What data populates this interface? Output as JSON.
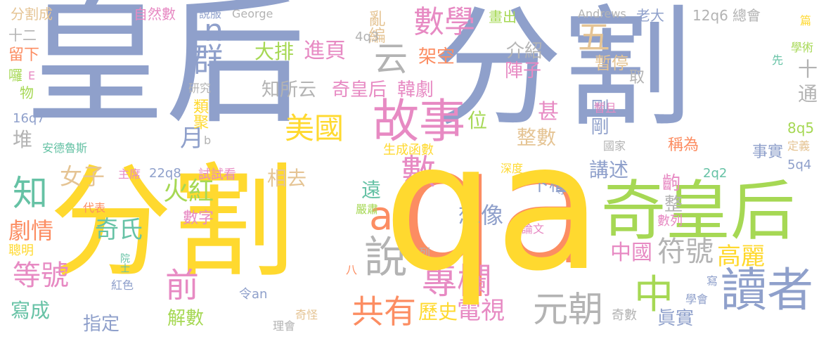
{
  "palette": {
    "blue": "#8FA0CB",
    "yellow": "#FFD92F",
    "orange": "#FC8D62",
    "green": "#A6D854",
    "pink": "#E78AC3",
    "teal": "#66C2A5",
    "tan": "#E5C494",
    "gray": "#B3B3B3",
    "background": "#FFFFFF"
  },
  "words": [
    {
      "text": "皇后",
      "color": "#8FA0CB"
    },
    {
      "text": "分割",
      "color": "#8FA0CB"
    },
    {
      "text": "分割",
      "color": "#FFD92F"
    },
    {
      "text": "qa",
      "color": "#FFD92F"
    },
    {
      "text": "qa",
      "color": "#FC8D62"
    },
    {
      "text": "奇皇后",
      "color": "#A6D854"
    },
    {
      "text": "故事",
      "color": "#E78AC3"
    },
    {
      "text": "讀者",
      "color": "#8FA0CB"
    },
    {
      "text": "數學",
      "color": "#E78AC3"
    },
    {
      "text": "專欄",
      "color": "#E78AC3"
    },
    {
      "text": "共有",
      "color": "#FC8D62"
    },
    {
      "text": "說",
      "color": "#B3B3B3"
    },
    {
      "text": "元朝",
      "color": "#B3B3B3"
    },
    {
      "text": "中",
      "color": "#A6D854"
    },
    {
      "text": "數",
      "color": "#E78AC3"
    },
    {
      "text": "ab",
      "color": "#FC8D62"
    },
    {
      "text": "美國",
      "color": "#FFD92F"
    },
    {
      "text": "云",
      "color": "#B3B3B3"
    },
    {
      "text": "群",
      "color": "#8FA0CB"
    },
    {
      "text": "知",
      "color": "#66C2A5"
    },
    {
      "text": "n",
      "color": "#8FA0CB"
    },
    {
      "text": "五",
      "color": "#E5C494"
    },
    {
      "text": "等號",
      "color": "#E78AC3"
    },
    {
      "text": "前",
      "color": "#E78AC3"
    },
    {
      "text": "符號",
      "color": "#B3B3B3"
    },
    {
      "text": "高麗",
      "color": "#FFD92F"
    },
    {
      "text": "電視",
      "color": "#E78AC3"
    },
    {
      "text": "歷史",
      "color": "#FFD92F"
    },
    {
      "text": "想像",
      "color": "#8FA0CB"
    },
    {
      "text": "中國",
      "color": "#E78AC3"
    },
    {
      "text": "奇氏",
      "color": "#66C2A5"
    },
    {
      "text": "火紅",
      "color": "#A6D854"
    },
    {
      "text": "女子",
      "color": "#E5C494"
    },
    {
      "text": "劇情",
      "color": "#FC8D62"
    },
    {
      "text": "寫成",
      "color": "#66C2A5"
    },
    {
      "text": "指定",
      "color": "#8FA0CB"
    },
    {
      "text": "解數",
      "color": "#A6D854"
    },
    {
      "text": "眞實",
      "color": "#8FA0CB"
    },
    {
      "text": "位",
      "color": "#A6D854"
    },
    {
      "text": "甚",
      "color": "#E78AC3"
    },
    {
      "text": "整數",
      "color": "#E5C494"
    },
    {
      "text": "剛剛",
      "color": "#8FA0CB"
    },
    {
      "text": "講述",
      "color": "#8FA0CB"
    },
    {
      "text": "下檔",
      "color": "#8FA0CB"
    },
    {
      "text": "相去",
      "color": "#E5C494"
    },
    {
      "text": "遠",
      "color": "#66C2A5"
    },
    {
      "text": "月",
      "color": "#8FA0CB"
    },
    {
      "text": "類聚",
      "color": "#FFD92F"
    },
    {
      "text": "堆",
      "color": "#B3B3B3"
    },
    {
      "text": "大排",
      "color": "#A6D854"
    },
    {
      "text": "進頁",
      "color": "#E78AC3"
    },
    {
      "text": "知所云",
      "color": "#B3B3B3"
    },
    {
      "text": "奇皇后",
      "color": "#E78AC3"
    },
    {
      "text": "韓劇",
      "color": "#E78AC3"
    },
    {
      "text": "架空",
      "color": "#FC8D62"
    },
    {
      "text": "陣子",
      "color": "#E78AC3"
    },
    {
      "text": "介紹",
      "color": "#B3B3B3"
    },
    {
      "text": "亂編",
      "color": "#E5C494"
    },
    {
      "text": "十",
      "color": "#B3B3B3"
    },
    {
      "text": "通",
      "color": "#B3B3B3"
    },
    {
      "text": "暫停",
      "color": "#E5C494"
    },
    {
      "text": "取",
      "color": "#B3B3B3"
    },
    {
      "text": "稱為",
      "color": "#FC8D62"
    },
    {
      "text": "事實",
      "color": "#8FA0CB"
    },
    {
      "text": "齣",
      "color": "#E78AC3"
    },
    {
      "text": "整",
      "color": "#B3B3B3"
    },
    {
      "text": "數字",
      "color": "#E78AC3"
    },
    {
      "text": "分割成",
      "color": "#E5C494"
    },
    {
      "text": "十二",
      "color": "#B3B3B3"
    },
    {
      "text": "留下",
      "color": "#FC8D62"
    },
    {
      "text": "自然數",
      "color": "#E78AC3"
    },
    {
      "text": "說服",
      "color": "#8FA0CB"
    },
    {
      "text": "George",
      "color": "#B3B3B3"
    },
    {
      "text": "Andrews",
      "color": "#B3B3B3"
    },
    {
      "text": "老大",
      "color": "#8FA0CB"
    },
    {
      "text": "12q6",
      "color": "#B3B3B3"
    },
    {
      "text": "總會",
      "color": "#B3B3B3"
    },
    {
      "text": "畫出",
      "color": "#A6D854"
    },
    {
      "text": "4q3",
      "color": "#B3B3B3"
    },
    {
      "text": "篇",
      "color": "#FFD92F"
    },
    {
      "text": "學術",
      "color": "#A6D854"
    },
    {
      "text": "先",
      "color": "#66C2A5"
    },
    {
      "text": "囉",
      "color": "#A6D854"
    },
    {
      "text": "E",
      "color": "#E78AC3"
    },
    {
      "text": "物",
      "color": "#A6D854"
    },
    {
      "text": "研究",
      "color": "#B3B3B3"
    },
    {
      "text": "16q7",
      "color": "#8FA0CB"
    },
    {
      "text": "b",
      "color": "#B3B3B3"
    },
    {
      "text": "安德魯斯",
      "color": "#66C2A5"
    },
    {
      "text": "生成函數",
      "color": "#FFD92F"
    },
    {
      "text": "暫且",
      "color": "#E78AC3"
    },
    {
      "text": "國家",
      "color": "#B3B3B3"
    },
    {
      "text": "8q5",
      "color": "#A6D854"
    },
    {
      "text": "定義",
      "color": "#E5C494"
    },
    {
      "text": "5q4",
      "color": "#8FA0CB"
    },
    {
      "text": "主席",
      "color": "#E78AC3"
    },
    {
      "text": "22q8",
      "color": "#8FA0CB"
    },
    {
      "text": "試試看",
      "color": "#E78AC3"
    },
    {
      "text": "深度",
      "color": "#FFD92F"
    },
    {
      "text": "2q2",
      "color": "#66C2A5"
    },
    {
      "text": "專家",
      "color": "#8FA0CB"
    },
    {
      "text": "代表",
      "color": "#FC8D62"
    },
    {
      "text": "嚴肅",
      "color": "#A6D854"
    },
    {
      "text": "聰明",
      "color": "#FFD92F"
    },
    {
      "text": "院士",
      "color": "#66C2A5"
    },
    {
      "text": "紅色",
      "color": "#8FA0CB"
    },
    {
      "text": "列",
      "color": "#B3B3B3"
    },
    {
      "text": "八",
      "color": "#FC8D62"
    },
    {
      "text": "令an",
      "color": "#8FA0CB"
    },
    {
      "text": "奇怪",
      "color": "#E5C494"
    },
    {
      "text": "理會",
      "color": "#B3B3B3"
    },
    {
      "text": "論文",
      "color": "#E78AC3"
    },
    {
      "text": "數列",
      "color": "#E78AC3"
    },
    {
      "text": "寫",
      "color": "#8FA0CB"
    },
    {
      "text": "學會",
      "color": "#8FA0CB"
    },
    {
      "text": "奇數",
      "color": "#B3B3B3"
    }
  ]
}
